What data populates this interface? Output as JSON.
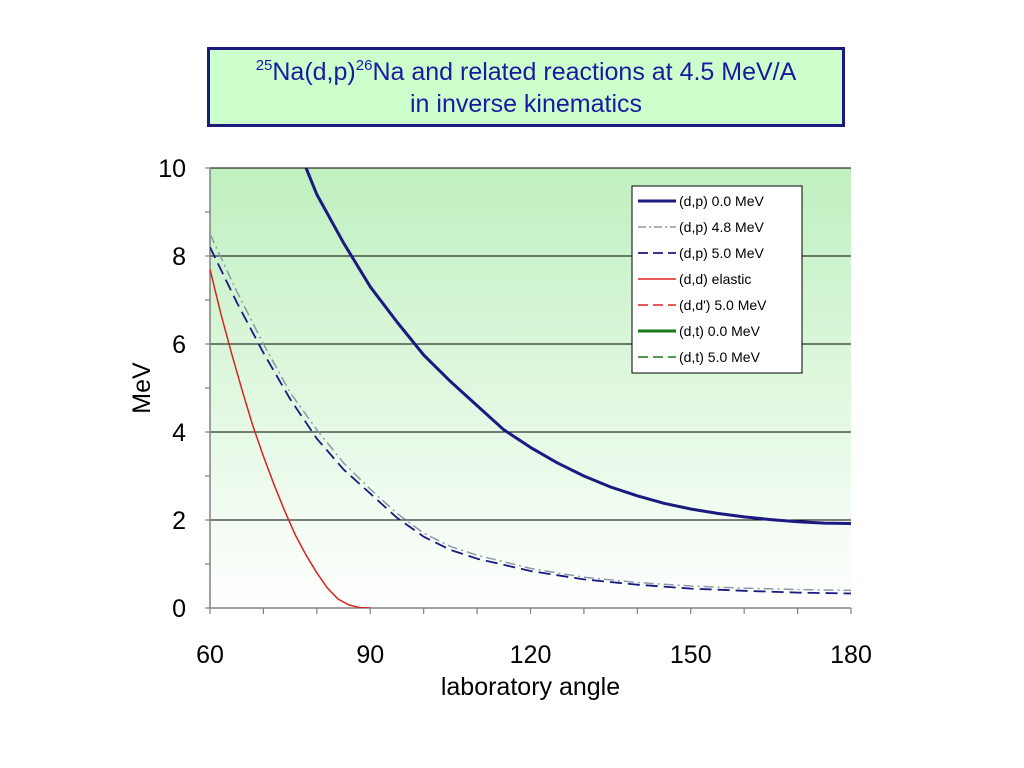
{
  "title": {
    "line1_sup1": "25",
    "line1_part1": "Na(d,p)",
    "line1_sup2": "26",
    "line1_part2": "Na and related reactions at 4.5 MeV/A",
    "line2": "in inverse kinematics"
  },
  "chart_data": {
    "type": "line",
    "xlabel": "laboratory angle",
    "ylabel": "MeV",
    "xlim": [
      60,
      180
    ],
    "ylim": [
      0,
      10
    ],
    "xticks": [
      60,
      90,
      120,
      150,
      180
    ],
    "yticks": [
      0,
      2,
      4,
      6,
      8,
      10
    ],
    "grid": "horizontal",
    "legend_position": "top-right",
    "colors": {
      "navy": "#1a1a80",
      "red": "#dd2222",
      "green": "#1a7a1a",
      "gray": "#8a9aaa",
      "bg_top": "#bff0bf"
    },
    "series": [
      {
        "name": "(d,p) 0.0 MeV",
        "color": "#1a1a80",
        "dash": "solid",
        "width": 3,
        "x": [
          78,
          80,
          85,
          90,
          95,
          100,
          105,
          110,
          115,
          120,
          125,
          130,
          135,
          140,
          145,
          150,
          155,
          160,
          165,
          170,
          175,
          180
        ],
        "y": [
          10,
          9.4,
          8.3,
          7.3,
          6.5,
          5.75,
          5.15,
          4.6,
          4.05,
          3.65,
          3.3,
          3.0,
          2.75,
          2.55,
          2.38,
          2.25,
          2.15,
          2.07,
          2.01,
          1.96,
          1.93,
          1.92
        ]
      },
      {
        "name": "(d,p) 4.8 MeV",
        "color": "#8a9aaa",
        "dash": "dashdot",
        "width": 1.5,
        "x": [
          60,
          65,
          70,
          75,
          80,
          85,
          90,
          95,
          100,
          105,
          110,
          120,
          130,
          140,
          150,
          160,
          170,
          180
        ],
        "y": [
          8.5,
          7.2,
          6.0,
          4.9,
          4.05,
          3.3,
          2.7,
          2.15,
          1.7,
          1.4,
          1.2,
          0.9,
          0.7,
          0.58,
          0.5,
          0.45,
          0.42,
          0.4
        ]
      },
      {
        "name": "(d,p) 5.0 MeV",
        "color": "#1a1a80",
        "dash": "dash",
        "width": 1.8,
        "x": [
          60,
          65,
          70,
          75,
          80,
          85,
          90,
          95,
          100,
          105,
          110,
          120,
          130,
          140,
          150,
          160,
          170,
          180
        ],
        "y": [
          8.2,
          6.95,
          5.8,
          4.75,
          3.85,
          3.15,
          2.6,
          2.05,
          1.62,
          1.32,
          1.12,
          0.84,
          0.65,
          0.53,
          0.44,
          0.39,
          0.35,
          0.33
        ]
      },
      {
        "name": "(d,d) elastic",
        "color": "#dd2222",
        "dash": "solid",
        "width": 1.5,
        "x": [
          60,
          62,
          64,
          66,
          68,
          70,
          72,
          74,
          76,
          78,
          80,
          82,
          84,
          86,
          88,
          90
        ],
        "y": [
          7.7,
          6.7,
          5.8,
          4.95,
          4.15,
          3.45,
          2.8,
          2.2,
          1.65,
          1.2,
          0.8,
          0.45,
          0.2,
          0.07,
          0.01,
          0
        ]
      },
      {
        "name": "(d,d') 5.0 MeV",
        "color": "#dd2222",
        "dash": "dash",
        "width": 1.5,
        "x": [],
        "y": []
      },
      {
        "name": "(d,t) 0.0 MeV",
        "color": "#1a7a1a",
        "dash": "solid",
        "width": 3,
        "x": [],
        "y": []
      },
      {
        "name": "(d,t) 5.0 MeV",
        "color": "#1a7a1a",
        "dash": "dash",
        "width": 1.5,
        "x": [],
        "y": []
      }
    ]
  }
}
